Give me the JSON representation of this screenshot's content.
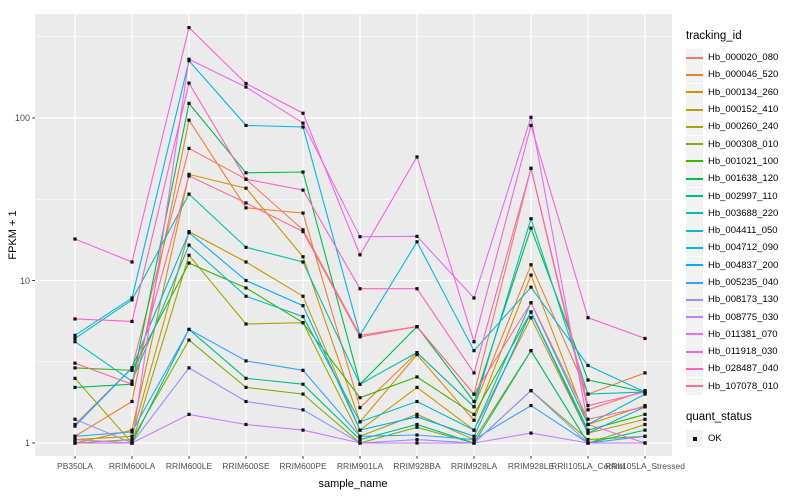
{
  "chart_data": {
    "type": "line",
    "title": "",
    "xlabel": "sample_name",
    "ylabel": "FPKM + 1",
    "yscale": "log10",
    "yticks": [
      1,
      10,
      100
    ],
    "ylim": [
      1,
      460
    ],
    "grid": true,
    "legend": {
      "title": "tracking_id",
      "position": "right"
    },
    "point_legend": {
      "title": "quant_status",
      "label": "OK"
    },
    "categories": [
      "PB350LA",
      "RRIM600LA",
      "RRIM600LE",
      "RRIM600SE",
      "RRIM600PE",
      "RRIM901LA",
      "RRIM928BA",
      "RRIM928LA",
      "RRIM928LE",
      "RRII105LA_Control",
      "RRII105LA_Stressed"
    ],
    "series": [
      {
        "name": "Hb_000020_080",
        "color": "#F8766D",
        "values": [
          1.3,
          2.9,
          65,
          42,
          20.5,
          4.6,
          5.2,
          2.0,
          49,
          1.6,
          2.1
        ]
      },
      {
        "name": "Hb_000046_520",
        "color": "#EA8331",
        "values": [
          1.1,
          1.8,
          97,
          28,
          26,
          1.65,
          3.6,
          1.67,
          12.5,
          2.0,
          2.7
        ]
      },
      {
        "name": "Hb_000134_260",
        "color": "#D89000",
        "values": [
          1.0,
          1.2,
          45,
          37,
          14,
          1.35,
          3.5,
          1.38,
          10.8,
          1.3,
          1.7
        ]
      },
      {
        "name": "Hb_000152_410",
        "color": "#C09B00",
        "values": [
          1.05,
          1.1,
          20,
          13,
          8.0,
          1.2,
          2.2,
          1.2,
          5.9,
          1.15,
          1.4
        ]
      },
      {
        "name": "Hb_000260_240",
        "color": "#A3A500",
        "values": [
          2.5,
          1.0,
          14.3,
          5.4,
          5.5,
          1.1,
          1.5,
          1.05,
          3.7,
          1.0,
          1.3
        ]
      },
      {
        "name": "Hb_000308_010",
        "color": "#7CAE00",
        "values": [
          1.0,
          1.05,
          4.3,
          2.2,
          2.0,
          1.0,
          1.25,
          1.0,
          2.1,
          1.05,
          1.1
        ]
      },
      {
        "name": "Hb_001021_100",
        "color": "#39B600",
        "values": [
          2.9,
          2.8,
          12.8,
          9.0,
          5.5,
          1.9,
          2.55,
          1.5,
          6.4,
          1.2,
          1.5
        ]
      },
      {
        "name": "Hb_001638_120",
        "color": "#00BB4E",
        "values": [
          2.2,
          2.3,
          123,
          46,
          46.5,
          2.3,
          5.2,
          1.8,
          21,
          2.44,
          2.06
        ]
      },
      {
        "name": "Hb_002997_110",
        "color": "#00BF7D",
        "values": [
          1.0,
          1.0,
          5.0,
          2.5,
          2.3,
          1.05,
          1.3,
          1.0,
          3.7,
          1.0,
          1.2
        ]
      },
      {
        "name": "Hb_003688_220",
        "color": "#00C0AF",
        "values": [
          4.4,
          7.6,
          34,
          16,
          13,
          2.3,
          3.6,
          1.67,
          24,
          2.0,
          2.06
        ]
      },
      {
        "name": "Hb_004411_050",
        "color": "#00BFC4",
        "values": [
          4.2,
          2.4,
          16.5,
          8.0,
          6.0,
          1.35,
          1.8,
          1.2,
          7.3,
          1.3,
          2.0
        ]
      },
      {
        "name": "Hb_004712_090",
        "color": "#00B8E7",
        "values": [
          4.6,
          7.8,
          225,
          90,
          88,
          4.6,
          17.3,
          3.7,
          9.1,
          3.0,
          2.06
        ]
      },
      {
        "name": "Hb_004837_200",
        "color": "#00ACFC",
        "values": [
          1.27,
          2.9,
          19.7,
          10,
          7.0,
          1.2,
          1.45,
          1.1,
          6.4,
          1.15,
          1.67
        ]
      },
      {
        "name": "Hb_005235_040",
        "color": "#35A2FF",
        "values": [
          1.1,
          1.17,
          5.0,
          3.2,
          2.8,
          1.1,
          1.12,
          1.05,
          1.7,
          1.0,
          1.1
        ]
      },
      {
        "name": "Hb_008173_130",
        "color": "#9590FF",
        "values": [
          1.4,
          1.0,
          2.9,
          1.8,
          1.6,
          1.0,
          1.05,
          1.0,
          2.1,
          1.0,
          1.0
        ]
      },
      {
        "name": "Hb_008775_030",
        "color": "#C77CFF",
        "values": [
          1.05,
          1.0,
          1.5,
          1.3,
          1.2,
          1.0,
          1.0,
          1.0,
          1.15,
          1.0,
          1.0
        ]
      },
      {
        "name": "Hb_011381_070",
        "color": "#E76BF3",
        "values": [
          1.0,
          1.0,
          230,
          155,
          93,
          18.6,
          18.7,
          7.8,
          101,
          1.3,
          1.0
        ]
      },
      {
        "name": "Hb_011918_030",
        "color": "#FA62DB",
        "values": [
          18,
          13,
          360,
          163,
          107,
          14.4,
          57.6,
          4.2,
          90,
          5.9,
          4.4
        ]
      },
      {
        "name": "Hb_028487_040",
        "color": "#FF62BC",
        "values": [
          5.8,
          5.6,
          164,
          42,
          36,
          8.9,
          8.9,
          2.7,
          49,
          1.7,
          2.06
        ]
      },
      {
        "name": "Hb_107078_010",
        "color": "#FF6A98",
        "values": [
          3.1,
          2.3,
          44,
          30,
          20,
          4.5,
          5.2,
          2.0,
          7.3,
          1.4,
          1.67
        ]
      }
    ],
    "style": {
      "panel_bg": "#EBEBEB",
      "grid_color": "#FFFFFF",
      "tick_color": "#333333",
      "tick_text_color": "#4D4D4D",
      "point_color": "#111111",
      "legend_key_bg": "#F2F2F2"
    }
  }
}
